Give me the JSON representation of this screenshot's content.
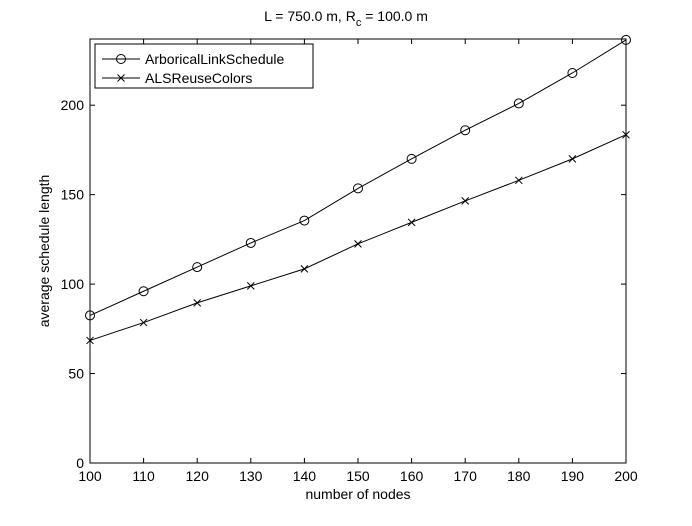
{
  "chart_data": {
    "type": "line",
    "title": "L =  750.0 m, R",
    "title_subscript": "c",
    "title_suffix": " = 100.0 m",
    "xlabel": "number of nodes",
    "ylabel": "average schedule length",
    "xlim": [
      100,
      200
    ],
    "ylim": [
      0,
      237
    ],
    "x_ticks": [
      100,
      110,
      120,
      130,
      140,
      150,
      160,
      170,
      180,
      190,
      200
    ],
    "y_ticks": [
      0,
      50,
      100,
      150,
      200
    ],
    "grid": false,
    "legend_position": "top-left",
    "x": [
      100,
      110,
      120,
      130,
      140,
      150,
      160,
      170,
      180,
      190,
      200
    ],
    "series": [
      {
        "name": "ArboricalLinkSchedule",
        "marker": "circle",
        "values": [
          82.5,
          96,
          109.5,
          123,
          135.5,
          153.5,
          170,
          186,
          201,
          218,
          236.5
        ]
      },
      {
        "name": "ALSReuseColors",
        "marker": "x",
        "values": [
          68.5,
          78.5,
          89.5,
          99,
          108.5,
          122.5,
          134.5,
          146.5,
          158,
          170,
          183.5
        ]
      }
    ]
  }
}
